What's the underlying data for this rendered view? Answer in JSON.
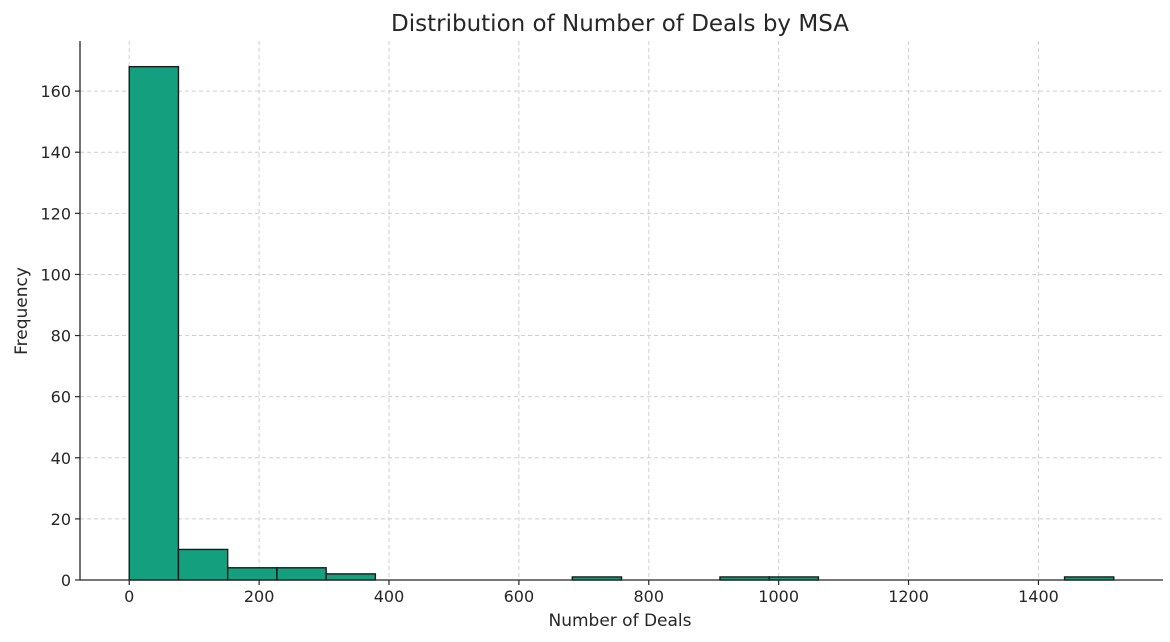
{
  "chart_data": {
    "type": "bar",
    "title": "Distribution of Number of Deals by MSA",
    "xlabel": "Number of Deals",
    "ylabel": "Frequency",
    "bin_edges": [
      0,
      75.8,
      151.6,
      227.4,
      303.2,
      379,
      454.8,
      530.6,
      606.4,
      682.2,
      758,
      833.8,
      909.6,
      985.4,
      1061.2,
      1137,
      1212.8,
      1288.6,
      1364.4,
      1440.2,
      1516
    ],
    "values": [
      168,
      10,
      4,
      4,
      2,
      0,
      0,
      0,
      0,
      1,
      0,
      0,
      1,
      1,
      0,
      0,
      0,
      0,
      0,
      1
    ],
    "xlim": [
      -75.8,
      1591.8
    ],
    "ylim": [
      0,
      176.4
    ],
    "xticks": [
      0,
      200,
      400,
      600,
      800,
      1000,
      1200,
      1400
    ],
    "yticks": [
      0,
      20,
      40,
      60,
      80,
      100,
      120,
      140,
      160
    ],
    "grid": true,
    "legend": "none",
    "colors": {
      "bar_fill": "#14a07e",
      "bar_edge": "#1a1a1a",
      "grid": "#cfcfcf"
    }
  }
}
